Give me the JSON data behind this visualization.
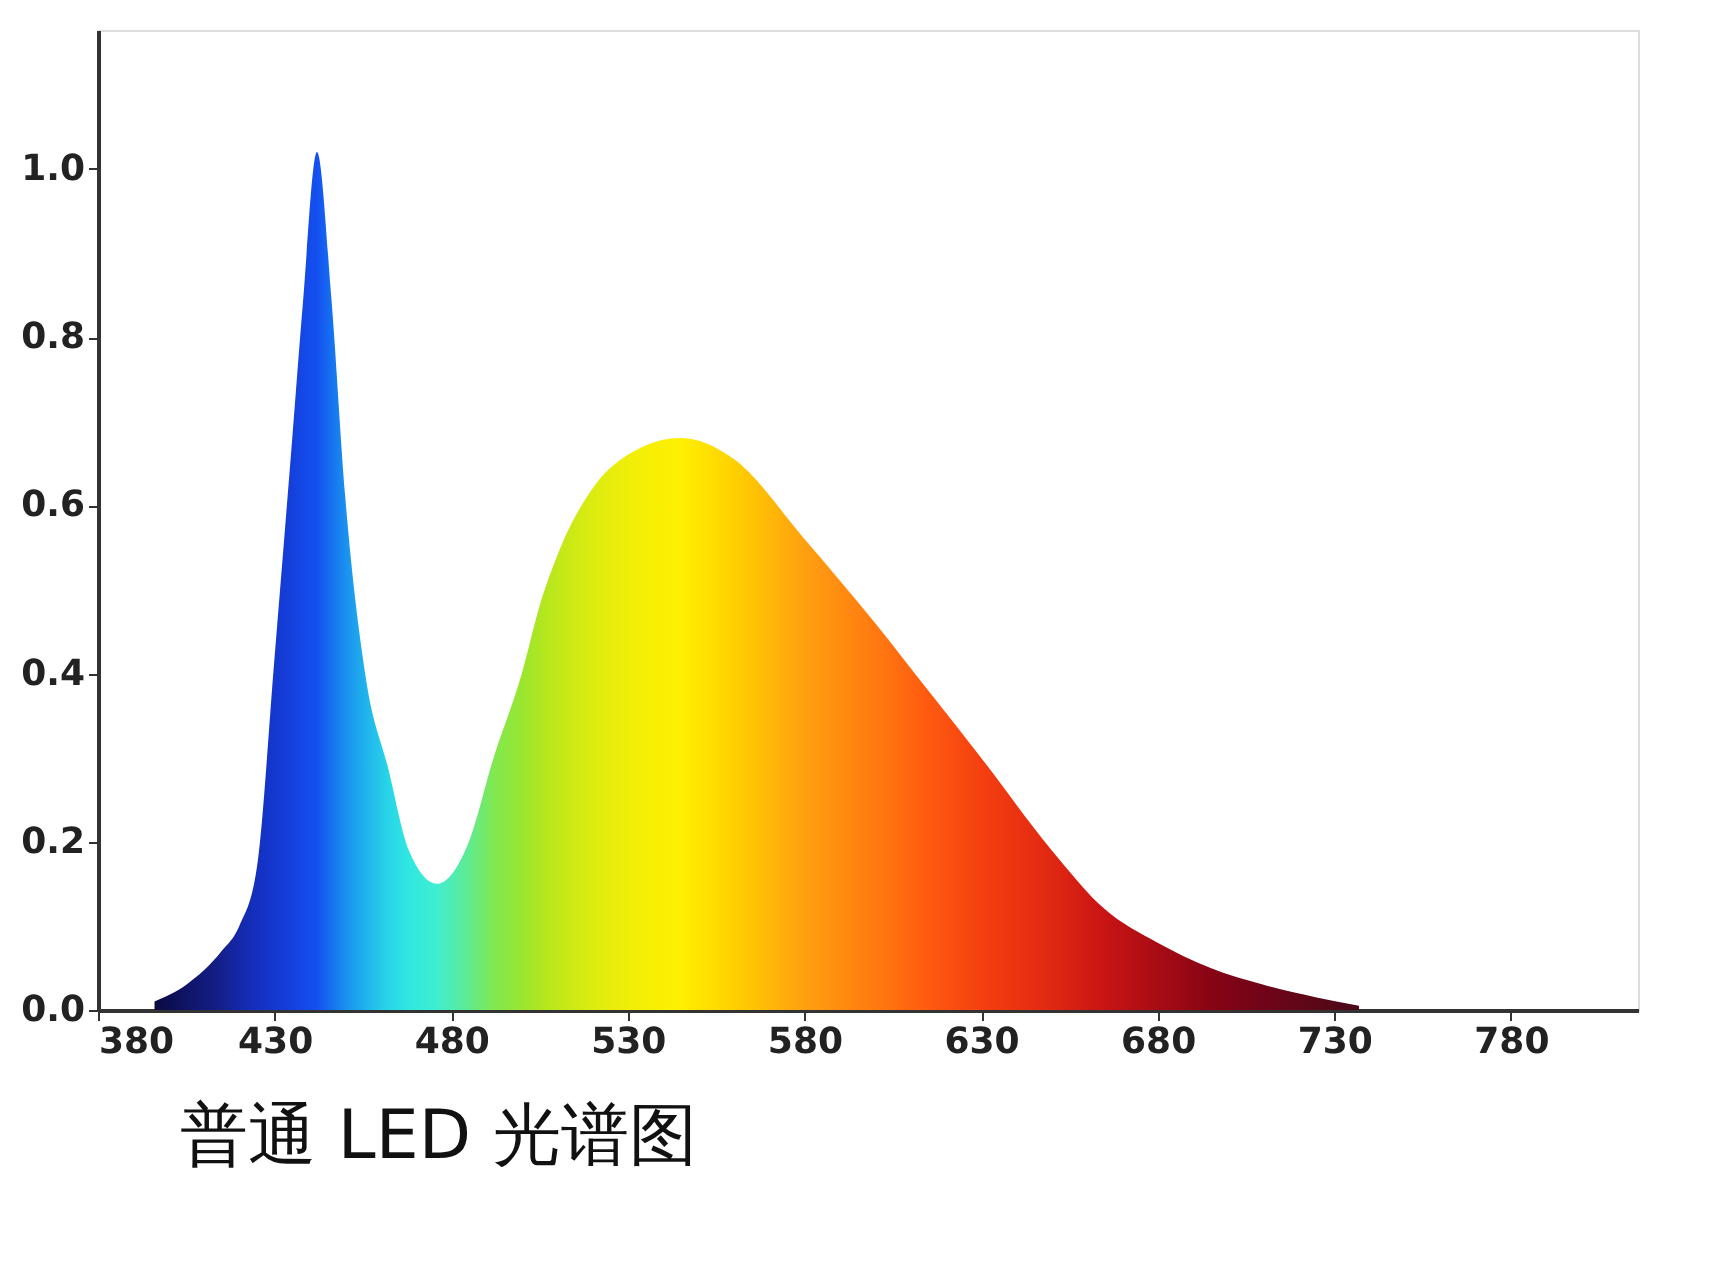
{
  "chart_data": {
    "type": "area",
    "title": "普通 LED 光谱图",
    "x": [
      396,
      405,
      415,
      420,
      425,
      430,
      435,
      438,
      442,
      446,
      450,
      456,
      462,
      468,
      476,
      485,
      492,
      500,
      505,
      510,
      520,
      530,
      545,
      560,
      580,
      600,
      615,
      630,
      650,
      665,
      680,
      695,
      710,
      725,
      737
    ],
    "series": [
      {
        "values": [
          0.01,
          0.03,
          0.07,
          0.1,
          0.17,
          0.42,
          0.68,
          0.84,
          1.02,
          0.85,
          0.61,
          0.39,
          0.29,
          0.19,
          0.15,
          0.2,
          0.3,
          0.4,
          0.48,
          0.54,
          0.62,
          0.66,
          0.68,
          0.655,
          0.56,
          0.46,
          0.38,
          0.3,
          0.19,
          0.12,
          0.08,
          0.05,
          0.03,
          0.015,
          0.005
        ],
        "colors": [
          "#0a0a40",
          "#0f1466",
          "#14208c",
          "#1428a8",
          "#1430c0",
          "#1438d0",
          "#1440dc",
          "#1448e6",
          "#1450f0",
          "#1670f0",
          "#1a90ee",
          "#20b4ec",
          "#28d4e8",
          "#30e8e0",
          "#40eed0",
          "#60ea90",
          "#80e850",
          "#9ae630",
          "#aee620",
          "#c0e81a",
          "#dcec10",
          "#f0ee08",
          "#fff000",
          "#ffd000",
          "#ffa010",
          "#ff7a10",
          "#ff5a10",
          "#f44010",
          "#e02812",
          "#c81414",
          "#a80c14",
          "#880414",
          "#700418",
          "#5a0818",
          "#4a0818"
        ]
      }
    ],
    "xlim": [
      380,
      816
    ],
    "xticks": [
      380,
      430,
      480,
      530,
      580,
      630,
      680,
      730,
      780
    ],
    "ylim": [
      0,
      1.165
    ],
    "yticks": [
      {
        "value": 0,
        "label": "0.0"
      },
      {
        "value": 0.2,
        "label": "0.2"
      },
      {
        "value": 0.4,
        "label": "0.4"
      },
      {
        "value": 0.6,
        "label": "0.6"
      },
      {
        "value": 0.8,
        "label": "0.8"
      },
      {
        "value": 1,
        "label": "1.0"
      }
    ]
  }
}
